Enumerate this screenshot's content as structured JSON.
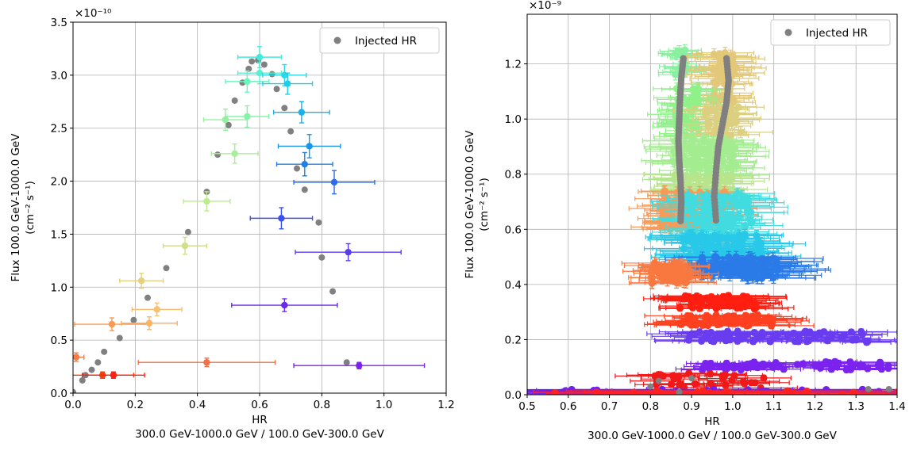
{
  "chart_data": [
    {
      "type": "scatter",
      "xlabel": "HR",
      "xlabel2": "300.0 GeV-1000.0 GeV / 100.0 GeV-300.0 GeV",
      "ylabel": "Flux 100.0 GeV-1000.0 GeV",
      "ylabel2": "(cm⁻² s⁻¹)",
      "yscale_label": "×10⁻¹⁰",
      "xlim": [
        0.0,
        1.2
      ],
      "ylim": [
        0.0,
        3.5
      ],
      "xticks": [
        "0.0",
        "0.2",
        "0.4",
        "0.6",
        "0.8",
        "1.0",
        "1.2"
      ],
      "yticks": [
        "0.0",
        "0.5",
        "1.0",
        "1.5",
        "2.0",
        "2.5",
        "3.0",
        "3.5"
      ],
      "grid": true,
      "legend": {
        "position": "top-right",
        "label": "Injected HR",
        "color": "#808080"
      },
      "injected": [
        [
          0.0,
          0.01
        ],
        [
          0.03,
          0.12
        ],
        [
          0.04,
          0.17
        ],
        [
          0.06,
          0.22
        ],
        [
          0.08,
          0.29
        ],
        [
          0.1,
          0.39
        ],
        [
          0.15,
          0.52
        ],
        [
          0.195,
          0.69
        ],
        [
          0.24,
          0.9
        ],
        [
          0.3,
          1.18
        ],
        [
          0.37,
          1.52
        ],
        [
          0.43,
          1.9
        ],
        [
          0.465,
          2.25
        ],
        [
          0.5,
          2.53
        ],
        [
          0.52,
          2.76
        ],
        [
          0.545,
          2.93
        ],
        [
          0.565,
          3.06
        ],
        [
          0.575,
          3.13
        ],
        [
          0.595,
          3.14
        ],
        [
          0.615,
          3.1
        ],
        [
          0.64,
          3.01
        ],
        [
          0.655,
          2.87
        ],
        [
          0.68,
          2.69
        ],
        [
          0.7,
          2.47
        ],
        [
          0.72,
          2.12
        ],
        [
          0.745,
          1.92
        ],
        [
          0.79,
          1.61
        ],
        [
          0.8,
          1.28
        ],
        [
          0.835,
          0.96
        ],
        [
          0.88,
          0.29
        ]
      ],
      "measured": [
        {
          "x": 0.01,
          "y": 0.34,
          "xerr": 0.025,
          "yerr": 0.04,
          "color": "#fb7a40"
        },
        {
          "x": 0.095,
          "y": 0.17,
          "xerr": 0.1,
          "yerr": 0.03,
          "color": "#f2400e"
        },
        {
          "x": 0.13,
          "y": 0.17,
          "xerr": 0.1,
          "yerr": 0.03,
          "color": "#ff2010"
        },
        {
          "x": 0.125,
          "y": 0.65,
          "xerr": 0.12,
          "yerr": 0.06,
          "color": "#fb9a50"
        },
        {
          "x": 0.245,
          "y": 0.66,
          "xerr": 0.09,
          "yerr": 0.06,
          "color": "#fdb266"
        },
        {
          "x": 0.27,
          "y": 0.79,
          "xerr": 0.08,
          "yerr": 0.06,
          "color": "#f8c070"
        },
        {
          "x": 0.22,
          "y": 1.06,
          "xerr": 0.07,
          "yerr": 0.07,
          "color": "#e6d07e"
        },
        {
          "x": 0.36,
          "y": 1.39,
          "xerr": 0.07,
          "yerr": 0.08,
          "color": "#d0e088"
        },
        {
          "x": 0.43,
          "y": 1.81,
          "xerr": 0.075,
          "yerr": 0.09,
          "color": "#bcea90"
        },
        {
          "x": 0.52,
          "y": 2.26,
          "xerr": 0.075,
          "yerr": 0.09,
          "color": "#a8ee98"
        },
        {
          "x": 0.49,
          "y": 2.58,
          "xerr": 0.07,
          "yerr": 0.1,
          "color": "#96f0a0"
        },
        {
          "x": 0.56,
          "y": 2.61,
          "xerr": 0.07,
          "yerr": 0.1,
          "color": "#86f2a8"
        },
        {
          "x": 0.56,
          "y": 2.94,
          "xerr": 0.07,
          "yerr": 0.1,
          "color": "#6af6c0"
        },
        {
          "x": 0.6,
          "y": 3.02,
          "xerr": 0.07,
          "yerr": 0.1,
          "color": "#58f0d0"
        },
        {
          "x": 0.6,
          "y": 3.17,
          "xerr": 0.07,
          "yerr": 0.1,
          "color": "#48e8d8"
        },
        {
          "x": 0.68,
          "y": 3.0,
          "xerr": 0.07,
          "yerr": 0.1,
          "color": "#2ad8e6"
        },
        {
          "x": 0.69,
          "y": 2.92,
          "xerr": 0.08,
          "yerr": 0.1,
          "color": "#20cce8"
        },
        {
          "x": 0.735,
          "y": 2.65,
          "xerr": 0.09,
          "yerr": 0.1,
          "color": "#18b2e8"
        },
        {
          "x": 0.76,
          "y": 2.33,
          "xerr": 0.1,
          "yerr": 0.11,
          "color": "#1a96e4"
        },
        {
          "x": 0.745,
          "y": 2.16,
          "xerr": 0.09,
          "yerr": 0.11,
          "color": "#2080e6"
        },
        {
          "x": 0.84,
          "y": 1.99,
          "xerr": 0.13,
          "yerr": 0.11,
          "color": "#2a6cea"
        },
        {
          "x": 0.67,
          "y": 1.65,
          "xerr": 0.1,
          "yerr": 0.1,
          "color": "#3a50ec"
        },
        {
          "x": 0.885,
          "y": 1.33,
          "xerr": 0.17,
          "yerr": 0.08,
          "color": "#5a3cee"
        },
        {
          "x": 0.68,
          "y": 0.83,
          "xerr": 0.17,
          "yerr": 0.06,
          "color": "#6a28ec"
        },
        {
          "x": 0.43,
          "y": 0.29,
          "xerr": 0.22,
          "yerr": 0.04,
          "color": "#f07048"
        },
        {
          "x": 0.92,
          "y": 0.26,
          "xerr": 0.21,
          "yerr": 0.03,
          "color": "#8020f0"
        }
      ]
    },
    {
      "type": "scatter",
      "xlabel": "HR",
      "xlabel2": "300.0 GeV-1000.0 GeV / 100.0 GeV-300.0 GeV",
      "ylabel": "Flux 100.0 GeV-1000.0 GeV",
      "ylabel2": "(cm⁻² s⁻¹)",
      "yscale_label": "×10⁻⁹",
      "xlim": [
        0.5,
        1.4
      ],
      "ylim": [
        0.0,
        1.38
      ],
      "xticks": [
        "0.5",
        "0.6",
        "0.7",
        "0.8",
        "0.9",
        "1.0",
        "1.1",
        "1.2",
        "1.3",
        "1.4"
      ],
      "yticks": [
        "0.0",
        "0.2",
        "0.4",
        "0.6",
        "0.8",
        "1.0",
        "1.2"
      ],
      "grid": true,
      "legend": {
        "position": "top-right",
        "label": "Injected HR",
        "color": "#808080"
      },
      "bands": [
        {
          "y_min": 1.16,
          "y_max": 1.25,
          "xmin": 0.86,
          "xmax": 0.89,
          "xerr": 0.04,
          "yerr": 0.02,
          "n": 22,
          "color": "#8af0a0",
          "seed": 1
        },
        {
          "y_min": 1.06,
          "y_max": 1.24,
          "xmin": 0.95,
          "xmax": 1.01,
          "xerr": 0.06,
          "yerr": 0.02,
          "n": 55,
          "color": "#e2c878",
          "seed": 2
        },
        {
          "y_min": 0.94,
          "y_max": 1.12,
          "xmin": 0.86,
          "xmax": 0.92,
          "xerr": 0.05,
          "yerr": 0.02,
          "n": 50,
          "color": "#90f08a",
          "seed": 3
        },
        {
          "y_min": 0.94,
          "y_max": 1.05,
          "xmin": 0.93,
          "xmax": 1.02,
          "xerr": 0.06,
          "yerr": 0.02,
          "n": 35,
          "color": "#dcd080",
          "seed": 4
        },
        {
          "y_min": 0.78,
          "y_max": 0.94,
          "xmin": 0.85,
          "xmax": 1.01,
          "xerr": 0.07,
          "yerr": 0.02,
          "n": 90,
          "color": "#a4ec90",
          "seed": 5
        },
        {
          "y_min": 0.72,
          "y_max": 0.8,
          "xmin": 0.86,
          "xmax": 1.0,
          "xerr": 0.07,
          "yerr": 0.02,
          "n": 40,
          "color": "#b8e48c",
          "seed": 6
        },
        {
          "y_min": 0.6,
          "y_max": 0.74,
          "xmin": 0.82,
          "xmax": 0.99,
          "xerr": 0.06,
          "yerr": 0.02,
          "n": 90,
          "color": "#f89a58",
          "seed": 7
        },
        {
          "y_min": 0.56,
          "y_max": 0.74,
          "xmin": 0.86,
          "xmax": 1.05,
          "xerr": 0.07,
          "yerr": 0.02,
          "n": 80,
          "color": "#40dce0",
          "seed": 8
        },
        {
          "y_min": 0.49,
          "y_max": 0.58,
          "xmin": 0.88,
          "xmax": 1.07,
          "xerr": 0.08,
          "yerr": 0.02,
          "n": 70,
          "color": "#28c8e8",
          "seed": 9
        },
        {
          "y_min": 0.42,
          "y_max": 0.5,
          "xmin": 0.92,
          "xmax": 1.11,
          "xerr": 0.1,
          "yerr": 0.02,
          "n": 90,
          "color": "#2a7ae8",
          "seed": 10
        },
        {
          "y_min": 0.4,
          "y_max": 0.48,
          "xmin": 0.8,
          "xmax": 0.9,
          "xerr": 0.06,
          "yerr": 0.02,
          "n": 45,
          "color": "#f87840",
          "seed": 11
        },
        {
          "y_min": 0.31,
          "y_max": 0.36,
          "xmin": 0.87,
          "xmax": 1.06,
          "xerr": 0.08,
          "yerr": 0.01,
          "n": 60,
          "color": "#ff1e10",
          "seed": 12
        },
        {
          "y_min": 0.25,
          "y_max": 0.29,
          "xmin": 0.87,
          "xmax": 1.1,
          "xerr": 0.08,
          "yerr": 0.01,
          "n": 60,
          "color": "#ff4020",
          "seed": 13
        },
        {
          "y_min": 0.19,
          "y_max": 0.23,
          "xmin": 0.89,
          "xmax": 1.33,
          "xerr": 0.08,
          "yerr": 0.01,
          "n": 70,
          "color": "#6a3cf0",
          "seed": 14
        },
        {
          "y_min": 0.09,
          "y_max": 0.12,
          "xmin": 0.92,
          "xmax": 1.38,
          "xerr": 0.06,
          "yerr": 0.01,
          "n": 55,
          "color": "#7a22ee",
          "seed": 15
        },
        {
          "y_min": 0.02,
          "y_max": 0.08,
          "xmin": 0.79,
          "xmax": 1.08,
          "xerr": 0.07,
          "yerr": 0.01,
          "n": 30,
          "color": "#f01818",
          "seed": 16
        },
        {
          "y_min": 0.0,
          "y_max": 0.02,
          "xmin": 0.5,
          "xmax": 1.4,
          "xerr": 0.2,
          "yerr": 0.005,
          "n": 40,
          "color": "#7020f0",
          "seed": 17
        },
        {
          "y_min": 0.0,
          "y_max": 0.015,
          "xmin": 0.5,
          "xmax": 1.4,
          "xerr": 0.2,
          "yerr": 0.005,
          "n": 20,
          "color": "#ff2020",
          "seed": 18
        }
      ],
      "injected_curves": [
        {
          "points": [
            [
              0.88,
              1.22
            ],
            [
              0.875,
              1.15
            ],
            [
              0.872,
              1.08
            ],
            [
              0.87,
              1.0
            ],
            [
              0.868,
              0.92
            ],
            [
              0.87,
              0.85
            ],
            [
              0.873,
              0.78
            ],
            [
              0.875,
              0.7
            ],
            [
              0.873,
              0.62
            ]
          ]
        },
        {
          "points": [
            [
              0.985,
              1.22
            ],
            [
              0.99,
              1.14
            ],
            [
              0.985,
              1.06
            ],
            [
              0.975,
              0.98
            ],
            [
              0.965,
              0.9
            ],
            [
              0.96,
              0.82
            ],
            [
              0.955,
              0.72
            ],
            [
              0.96,
              0.62
            ]
          ]
        }
      ],
      "injected_extra": [
        [
          0.82,
          0.05
        ],
        [
          0.8,
          0.03
        ],
        [
          0.87,
          0.01
        ],
        [
          0.9,
          0.06
        ],
        [
          1.33,
          0.02
        ],
        [
          1.38,
          0.02
        ]
      ]
    }
  ]
}
